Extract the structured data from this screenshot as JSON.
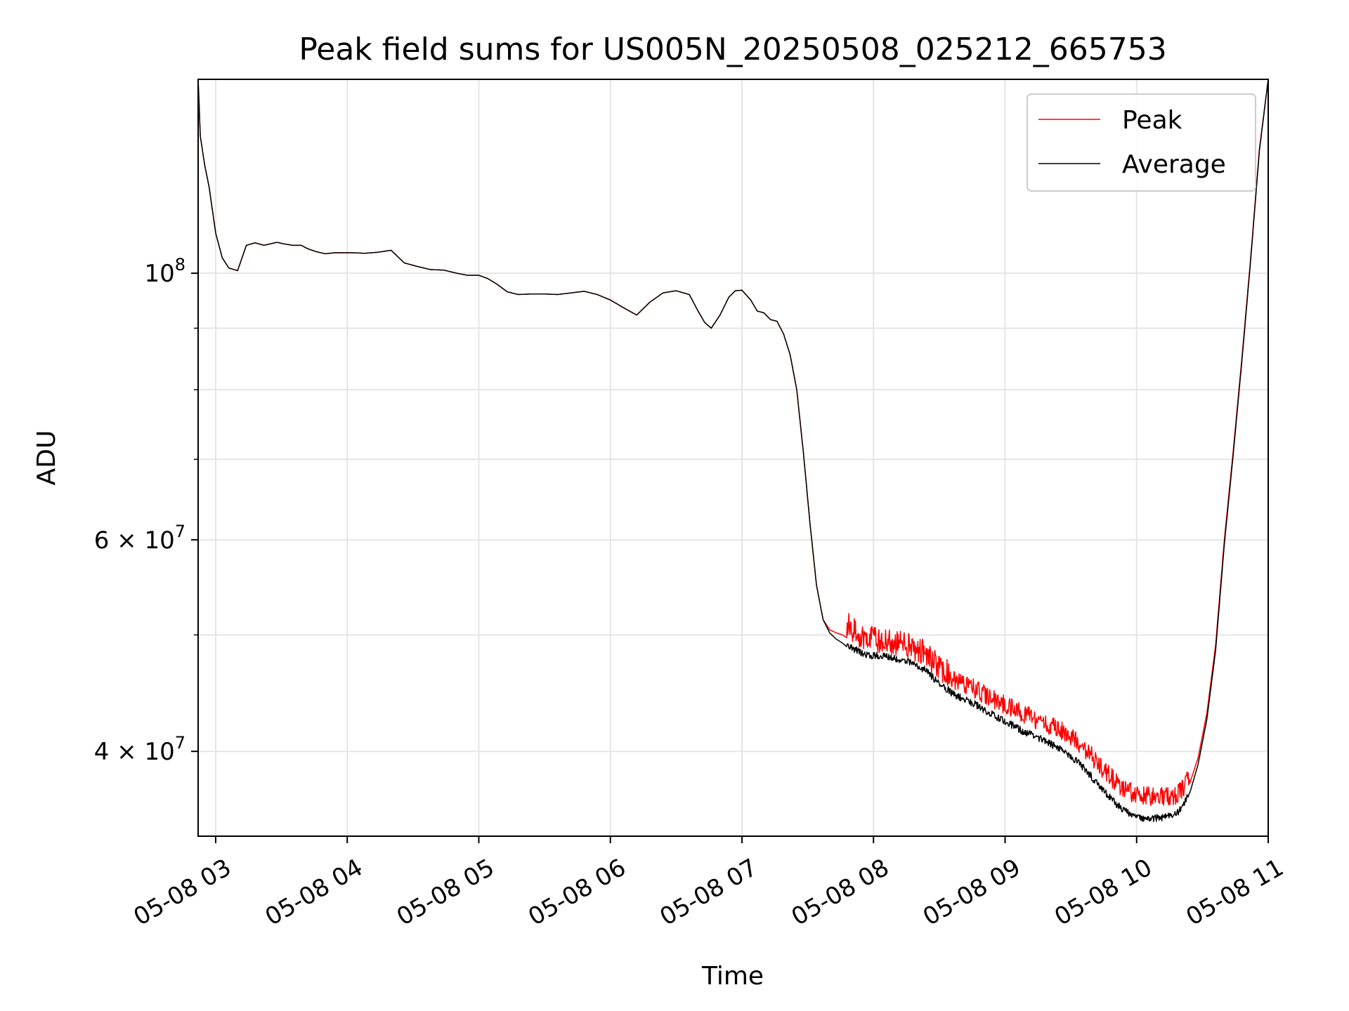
{
  "chart_data": {
    "type": "line",
    "title": "Peak field sums for US005N_20250508_025212_665753",
    "xlabel": "Time",
    "ylabel": "ADU",
    "yscale": "log",
    "xlim": [
      "2025-05-08 02:52",
      "2025-05-08 11:00"
    ],
    "ylim": [
      34000000,
      145000000
    ],
    "grid": true,
    "legend_position": "top-right",
    "x_ticks": [
      {
        "value": "2025-05-08 03:00",
        "label": "05-08 03"
      },
      {
        "value": "2025-05-08 04:00",
        "label": "05-08 04"
      },
      {
        "value": "2025-05-08 05:00",
        "label": "05-08 05"
      },
      {
        "value": "2025-05-08 06:00",
        "label": "05-08 06"
      },
      {
        "value": "2025-05-08 07:00",
        "label": "05-08 07"
      },
      {
        "value": "2025-05-08 08:00",
        "label": "05-08 08"
      },
      {
        "value": "2025-05-08 09:00",
        "label": "05-08 09"
      },
      {
        "value": "2025-05-08 10:00",
        "label": "05-08 10"
      },
      {
        "value": "2025-05-08 11:00",
        "label": "05-08 11"
      }
    ],
    "y_major_ticks": [
      {
        "value": 40000000,
        "label": "4 × 10",
        "exp": "7"
      },
      {
        "value": 60000000,
        "label": "6 × 10",
        "exp": "7"
      },
      {
        "value": 100000000,
        "label": "10",
        "exp": "8"
      }
    ],
    "y_minor_ticks": [
      50000000,
      70000000,
      80000000,
      90000000
    ],
    "series": [
      {
        "name": "Peak",
        "color": "#ff0000",
        "x": [
          "2025-05-08 02:52",
          "2025-05-08 02:53",
          "2025-05-08 02:55",
          "2025-05-08 02:57",
          "2025-05-08 03:00",
          "2025-05-08 03:03",
          "2025-05-08 03:06",
          "2025-05-08 03:10",
          "2025-05-08 03:14",
          "2025-05-08 03:18",
          "2025-05-08 03:22",
          "2025-05-08 03:25",
          "2025-05-08 03:28",
          "2025-05-08 03:31",
          "2025-05-08 03:35",
          "2025-05-08 03:39",
          "2025-05-08 03:42",
          "2025-05-08 03:46",
          "2025-05-08 03:50",
          "2025-05-08 03:54",
          "2025-05-08 03:58",
          "2025-05-08 04:03",
          "2025-05-08 04:08",
          "2025-05-08 04:14",
          "2025-05-08 04:20",
          "2025-05-08 04:26",
          "2025-05-08 04:32",
          "2025-05-08 04:38",
          "2025-05-08 04:44",
          "2025-05-08 04:50",
          "2025-05-08 04:55",
          "2025-05-08 05:00",
          "2025-05-08 05:04",
          "2025-05-08 05:08",
          "2025-05-08 05:13",
          "2025-05-08 05:18",
          "2025-05-08 05:24",
          "2025-05-08 05:30",
          "2025-05-08 05:36",
          "2025-05-08 05:42",
          "2025-05-08 05:48",
          "2025-05-08 05:54",
          "2025-05-08 06:00",
          "2025-05-08 06:06",
          "2025-05-08 06:12",
          "2025-05-08 06:18",
          "2025-05-08 06:24",
          "2025-05-08 06:30",
          "2025-05-08 06:36",
          "2025-05-08 06:40",
          "2025-05-08 06:43",
          "2025-05-08 06:46",
          "2025-05-08 06:50",
          "2025-05-08 06:54",
          "2025-05-08 06:57",
          "2025-05-08 07:00",
          "2025-05-08 07:04",
          "2025-05-08 07:07",
          "2025-05-08 07:10",
          "2025-05-08 07:13",
          "2025-05-08 07:16",
          "2025-05-08 07:19",
          "2025-05-08 07:22",
          "2025-05-08 07:25",
          "2025-05-08 07:28",
          "2025-05-08 07:31",
          "2025-05-08 07:34",
          "2025-05-08 07:37",
          "2025-05-08 07:40",
          "2025-05-08 07:43",
          "2025-05-08 07:46",
          "2025-05-08 07:50",
          "2025-05-08 07:55",
          "2025-05-08 08:00",
          "2025-05-08 08:06",
          "2025-05-08 08:12",
          "2025-05-08 08:18",
          "2025-05-08 08:24",
          "2025-05-08 08:30",
          "2025-05-08 08:34",
          "2025-05-08 08:36",
          "2025-05-08 08:40",
          "2025-05-08 08:46",
          "2025-05-08 08:52",
          "2025-05-08 09:00",
          "2025-05-08 09:08",
          "2025-05-08 09:16",
          "2025-05-08 09:24",
          "2025-05-08 09:32",
          "2025-05-08 09:38",
          "2025-05-08 09:44",
          "2025-05-08 09:50",
          "2025-05-08 09:55",
          "2025-05-08 10:00",
          "2025-05-08 10:06",
          "2025-05-08 10:12",
          "2025-05-08 10:18",
          "2025-05-08 10:21",
          "2025-05-08 10:24",
          "2025-05-08 10:28",
          "2025-05-08 10:32",
          "2025-05-08 10:36",
          "2025-05-08 10:40",
          "2025-05-08 10:44",
          "2025-05-08 10:48",
          "2025-05-08 10:52",
          "2025-05-08 10:56",
          "2025-05-08 11:00"
        ],
        "y": [
          145000000,
          130000000,
          123000000,
          118000000,
          108000000,
          103000000,
          101000000,
          100500000,
          105500000,
          106000000,
          105500000,
          105800000,
          106100000,
          105800000,
          105500000,
          105500000,
          104800000,
          104200000,
          103800000,
          104000000,
          104000000,
          104000000,
          103900000,
          104100000,
          104500000,
          102000000,
          101300000,
          100700000,
          100600000,
          100000000,
          99600000,
          99600000,
          99000000,
          98000000,
          96500000,
          96000000,
          96100000,
          96100000,
          96000000,
          96300000,
          96600000,
          96000000,
          95000000,
          93600000,
          92300000,
          94600000,
          96300000,
          96700000,
          96000000,
          93000000,
          91000000,
          90000000,
          92300000,
          95500000,
          96700000,
          96800000,
          95000000,
          93000000,
          92700000,
          91500000,
          91200000,
          89000000,
          85500000,
          80000000,
          71000000,
          62000000,
          55000000,
          51500000,
          50500000,
          50200000,
          50000000,
          49400000,
          48600000,
          48300000,
          48200000,
          48000000,
          47600000,
          47000000,
          45800000,
          45300000,
          45100000,
          44800000,
          44300000,
          43600000,
          42900000,
          42200000,
          41600000,
          41000000,
          40200000,
          39200000,
          38100000,
          37100000,
          36500000,
          36100000,
          36000000,
          36000000,
          36100000,
          36500000,
          37500000,
          39500000,
          43000000,
          49000000,
          60000000,
          71000000,
          85000000,
          103000000,
          127000000,
          145000000
        ],
        "jitter": [
          {
            "from": "2025-05-08 07:48",
            "to": "2025-05-08 08:36",
            "max": 0.022
          },
          {
            "from": "2025-05-08 08:36",
            "to": "2025-05-08 10:24",
            "max": 0.016
          }
        ]
      },
      {
        "name": "Average",
        "color": "#000000",
        "x": [
          "2025-05-08 02:52",
          "2025-05-08 02:53",
          "2025-05-08 02:55",
          "2025-05-08 02:57",
          "2025-05-08 03:00",
          "2025-05-08 03:03",
          "2025-05-08 03:06",
          "2025-05-08 03:10",
          "2025-05-08 03:14",
          "2025-05-08 03:18",
          "2025-05-08 03:22",
          "2025-05-08 03:25",
          "2025-05-08 03:28",
          "2025-05-08 03:31",
          "2025-05-08 03:35",
          "2025-05-08 03:39",
          "2025-05-08 03:42",
          "2025-05-08 03:46",
          "2025-05-08 03:50",
          "2025-05-08 03:54",
          "2025-05-08 03:58",
          "2025-05-08 04:03",
          "2025-05-08 04:08",
          "2025-05-08 04:14",
          "2025-05-08 04:20",
          "2025-05-08 04:26",
          "2025-05-08 04:32",
          "2025-05-08 04:38",
          "2025-05-08 04:44",
          "2025-05-08 04:50",
          "2025-05-08 04:55",
          "2025-05-08 05:00",
          "2025-05-08 05:04",
          "2025-05-08 05:08",
          "2025-05-08 05:13",
          "2025-05-08 05:18",
          "2025-05-08 05:24",
          "2025-05-08 05:30",
          "2025-05-08 05:36",
          "2025-05-08 05:42",
          "2025-05-08 05:48",
          "2025-05-08 05:54",
          "2025-05-08 06:00",
          "2025-05-08 06:06",
          "2025-05-08 06:12",
          "2025-05-08 06:18",
          "2025-05-08 06:24",
          "2025-05-08 06:30",
          "2025-05-08 06:36",
          "2025-05-08 06:40",
          "2025-05-08 06:43",
          "2025-05-08 06:46",
          "2025-05-08 06:50",
          "2025-05-08 06:54",
          "2025-05-08 06:57",
          "2025-05-08 07:00",
          "2025-05-08 07:04",
          "2025-05-08 07:07",
          "2025-05-08 07:10",
          "2025-05-08 07:13",
          "2025-05-08 07:16",
          "2025-05-08 07:19",
          "2025-05-08 07:22",
          "2025-05-08 07:25",
          "2025-05-08 07:28",
          "2025-05-08 07:31",
          "2025-05-08 07:34",
          "2025-05-08 07:37",
          "2025-05-08 07:40",
          "2025-05-08 07:43",
          "2025-05-08 07:46",
          "2025-05-08 07:50",
          "2025-05-08 07:55",
          "2025-05-08 08:00",
          "2025-05-08 08:06",
          "2025-05-08 08:12",
          "2025-05-08 08:18",
          "2025-05-08 08:24",
          "2025-05-08 08:30",
          "2025-05-08 08:34",
          "2025-05-08 08:36",
          "2025-05-08 08:40",
          "2025-05-08 08:46",
          "2025-05-08 08:52",
          "2025-05-08 09:00",
          "2025-05-08 09:08",
          "2025-05-08 09:16",
          "2025-05-08 09:24",
          "2025-05-08 09:32",
          "2025-05-08 09:38",
          "2025-05-08 09:44",
          "2025-05-08 09:50",
          "2025-05-08 09:55",
          "2025-05-08 10:00",
          "2025-05-08 10:06",
          "2025-05-08 10:12",
          "2025-05-08 10:18",
          "2025-05-08 10:21",
          "2025-05-08 10:24",
          "2025-05-08 10:28",
          "2025-05-08 10:32",
          "2025-05-08 10:36",
          "2025-05-08 10:40",
          "2025-05-08 10:44",
          "2025-05-08 10:48",
          "2025-05-08 10:52",
          "2025-05-08 10:56",
          "2025-05-08 11:00"
        ],
        "y": [
          145000000,
          130000000,
          123000000,
          118000000,
          108000000,
          103000000,
          101000000,
          100500000,
          105500000,
          106000000,
          105500000,
          105800000,
          106100000,
          105800000,
          105500000,
          105500000,
          104800000,
          104200000,
          103800000,
          104000000,
          104000000,
          104000000,
          103900000,
          104100000,
          104500000,
          102000000,
          101300000,
          100700000,
          100600000,
          100000000,
          99600000,
          99600000,
          99000000,
          98000000,
          96500000,
          96000000,
          96100000,
          96100000,
          96000000,
          96300000,
          96600000,
          96000000,
          95000000,
          93600000,
          92300000,
          94600000,
          96300000,
          96700000,
          96000000,
          93000000,
          91000000,
          90000000,
          92300000,
          95500000,
          96700000,
          96800000,
          95000000,
          93000000,
          92700000,
          91500000,
          91200000,
          89000000,
          85500000,
          80000000,
          71000000,
          62000000,
          55000000,
          51500000,
          50200000,
          49600000,
          49200000,
          48500000,
          47900000,
          47700000,
          47600000,
          47400000,
          47000000,
          46400000,
          45200000,
          44700000,
          44400000,
          44000000,
          43500000,
          42800000,
          42100000,
          41300000,
          40700000,
          40000000,
          39100000,
          38100000,
          37000000,
          36000000,
          35400000,
          35000000,
          34900000,
          35000000,
          35200000,
          35700000,
          36800000,
          39000000,
          42500000,
          48500000,
          59500000,
          70500000,
          84500000,
          102500000,
          126500000,
          145000000
        ],
        "jitter": [
          {
            "from": "2025-05-08 07:48",
            "to": "2025-05-08 10:24",
            "max": 0.006
          }
        ]
      }
    ]
  }
}
